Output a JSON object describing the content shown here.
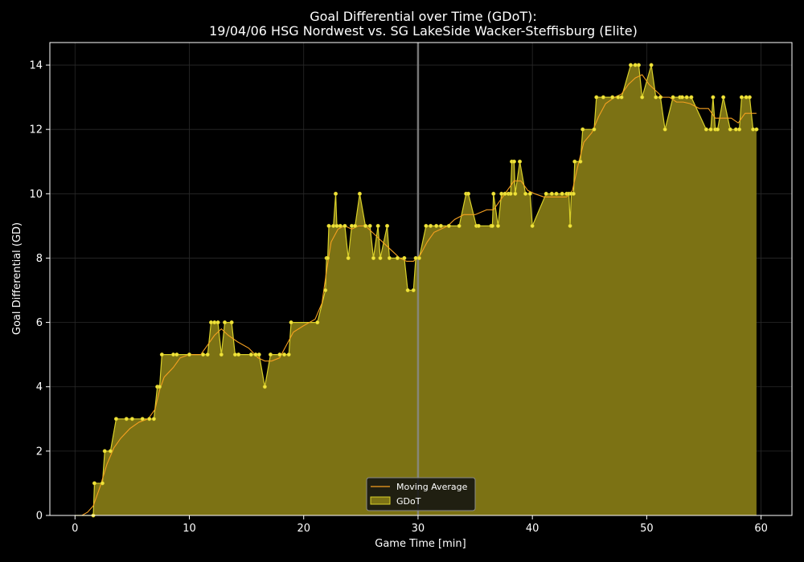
{
  "chart_data": {
    "type": "area",
    "title_line1": "Goal Differential over Time (GDoT):",
    "title_line2": "19/04/06 HSG Nordwest  vs.  SG LakeSide Wacker-Steffisburg (Elite)",
    "xlabel": "Game Time [min]",
    "ylabel": "Goal Differential (GD)",
    "xlim": [
      -2.2,
      62.7
    ],
    "ylim": [
      0,
      14.7
    ],
    "xticks": [
      0,
      10,
      20,
      30,
      40,
      50,
      60
    ],
    "yticks": [
      0,
      2,
      4,
      6,
      8,
      10,
      12,
      14
    ],
    "grid": true,
    "halftime_line_x": 30,
    "legend_position": "bottom-center",
    "legend": [
      "Moving Average",
      "GDoT"
    ],
    "series": [
      {
        "name": "GDoT",
        "style": "filled-area",
        "points": [
          [
            0,
            0
          ],
          [
            1.6,
            0
          ],
          [
            1.7,
            1
          ],
          [
            2.4,
            1
          ],
          [
            2.6,
            2
          ],
          [
            3.1,
            2
          ],
          [
            3.6,
            3
          ],
          [
            4.5,
            3
          ],
          [
            5.0,
            3
          ],
          [
            5.9,
            3
          ],
          [
            6.5,
            3
          ],
          [
            6.9,
            3
          ],
          [
            7.2,
            4
          ],
          [
            7.4,
            4
          ],
          [
            7.6,
            5
          ],
          [
            8.6,
            5
          ],
          [
            8.9,
            5
          ],
          [
            10.0,
            5
          ],
          [
            11.2,
            5
          ],
          [
            11.6,
            5
          ],
          [
            11.9,
            6
          ],
          [
            12.2,
            6
          ],
          [
            12.5,
            6
          ],
          [
            12.8,
            5
          ],
          [
            13.1,
            6
          ],
          [
            13.7,
            6
          ],
          [
            14.0,
            5
          ],
          [
            14.3,
            5
          ],
          [
            15.4,
            5
          ],
          [
            15.8,
            5
          ],
          [
            16.1,
            5
          ],
          [
            16.6,
            4
          ],
          [
            17.1,
            5
          ],
          [
            17.9,
            5
          ],
          [
            18.3,
            5
          ],
          [
            18.7,
            5
          ],
          [
            18.9,
            6
          ],
          [
            21.2,
            6
          ],
          [
            21.9,
            7
          ],
          [
            22.0,
            8
          ],
          [
            22.1,
            8
          ],
          [
            22.2,
            9
          ],
          [
            22.6,
            9
          ],
          [
            22.8,
            10
          ],
          [
            22.9,
            9
          ],
          [
            23.2,
            9
          ],
          [
            23.6,
            9
          ],
          [
            23.9,
            8
          ],
          [
            24.2,
            9
          ],
          [
            24.5,
            9
          ],
          [
            24.9,
            10
          ],
          [
            25.4,
            9
          ],
          [
            25.8,
            9
          ],
          [
            26.1,
            8
          ],
          [
            26.5,
            9
          ],
          [
            26.7,
            8
          ],
          [
            27.3,
            9
          ],
          [
            27.5,
            8
          ],
          [
            28.2,
            8
          ],
          [
            28.8,
            8
          ],
          [
            29.1,
            7
          ],
          [
            29.6,
            7
          ],
          [
            29.8,
            8
          ],
          [
            30.1,
            8
          ],
          [
            30.7,
            9
          ],
          [
            31.1,
            9
          ],
          [
            31.6,
            9
          ],
          [
            32.0,
            9
          ],
          [
            32.7,
            9
          ],
          [
            33.6,
            9
          ],
          [
            34.2,
            10
          ],
          [
            34.4,
            10
          ],
          [
            35.1,
            9
          ],
          [
            35.3,
            9
          ],
          [
            36.4,
            9
          ],
          [
            36.5,
            9
          ],
          [
            36.6,
            10
          ],
          [
            37.0,
            9
          ],
          [
            37.3,
            10
          ],
          [
            37.6,
            10
          ],
          [
            37.9,
            10
          ],
          [
            38.1,
            10
          ],
          [
            38.2,
            11
          ],
          [
            38.4,
            11
          ],
          [
            38.5,
            10
          ],
          [
            38.9,
            11
          ],
          [
            39.4,
            10
          ],
          [
            39.8,
            10
          ],
          [
            40.0,
            9
          ],
          [
            41.2,
            10
          ],
          [
            41.7,
            10
          ],
          [
            42.1,
            10
          ],
          [
            42.6,
            10
          ],
          [
            43.0,
            10
          ],
          [
            43.2,
            10
          ],
          [
            43.3,
            9
          ],
          [
            43.4,
            10
          ],
          [
            43.6,
            10
          ],
          [
            43.7,
            11
          ],
          [
            44.2,
            11
          ],
          [
            44.4,
            12
          ],
          [
            45.4,
            12
          ],
          [
            45.6,
            13
          ],
          [
            46.2,
            13
          ],
          [
            47.0,
            13
          ],
          [
            47.5,
            13
          ],
          [
            47.8,
            13
          ],
          [
            48.6,
            14
          ],
          [
            49.0,
            14
          ],
          [
            49.3,
            14
          ],
          [
            49.6,
            13
          ],
          [
            50.4,
            14
          ],
          [
            50.8,
            13
          ],
          [
            51.2,
            13
          ],
          [
            51.6,
            12
          ],
          [
            52.3,
            13
          ],
          [
            52.9,
            13
          ],
          [
            53.1,
            13
          ],
          [
            53.5,
            13
          ],
          [
            53.9,
            13
          ],
          [
            55.2,
            12
          ],
          [
            55.6,
            12
          ],
          [
            55.8,
            13
          ],
          [
            56.0,
            12
          ],
          [
            56.2,
            12
          ],
          [
            56.7,
            13
          ],
          [
            57.3,
            12
          ],
          [
            57.8,
            12
          ],
          [
            58.1,
            12
          ],
          [
            58.3,
            13
          ],
          [
            58.7,
            13
          ],
          [
            59.0,
            13
          ],
          [
            59.3,
            12
          ],
          [
            59.6,
            12
          ]
        ]
      },
      {
        "name": "Moving Average",
        "style": "line",
        "points": [
          [
            0.6,
            0
          ],
          [
            1.1,
            0.1
          ],
          [
            1.6,
            0.3
          ],
          [
            2.2,
            0.9
          ],
          [
            2.8,
            1.6
          ],
          [
            3.4,
            2.1
          ],
          [
            4.0,
            2.4
          ],
          [
            4.8,
            2.7
          ],
          [
            5.6,
            2.9
          ],
          [
            6.4,
            3.0
          ],
          [
            7.0,
            3.3
          ],
          [
            7.4,
            3.9
          ],
          [
            7.8,
            4.3
          ],
          [
            8.6,
            4.6
          ],
          [
            9.2,
            4.9
          ],
          [
            10.0,
            5.0
          ],
          [
            11.0,
            5.0
          ],
          [
            11.6,
            5.3
          ],
          [
            12.2,
            5.6
          ],
          [
            12.8,
            5.8
          ],
          [
            13.4,
            5.6
          ],
          [
            14.2,
            5.4
          ],
          [
            15.2,
            5.2
          ],
          [
            16.0,
            4.9
          ],
          [
            16.6,
            4.8
          ],
          [
            17.2,
            4.8
          ],
          [
            17.9,
            4.9
          ],
          [
            18.5,
            5.3
          ],
          [
            19.1,
            5.7
          ],
          [
            20.0,
            5.9
          ],
          [
            21.0,
            6.1
          ],
          [
            21.6,
            6.6
          ],
          [
            22.0,
            7.6
          ],
          [
            22.4,
            8.5
          ],
          [
            23.0,
            8.9
          ],
          [
            23.6,
            9.0
          ],
          [
            24.2,
            8.9
          ],
          [
            24.8,
            9.0
          ],
          [
            25.4,
            9.0
          ],
          [
            26.0,
            8.8
          ],
          [
            26.6,
            8.6
          ],
          [
            27.2,
            8.4
          ],
          [
            27.8,
            8.2
          ],
          [
            28.4,
            8.0
          ],
          [
            29.0,
            7.9
          ],
          [
            29.6,
            7.9
          ],
          [
            30.2,
            8.1
          ],
          [
            30.8,
            8.5
          ],
          [
            31.4,
            8.8
          ],
          [
            32.0,
            8.9
          ],
          [
            32.6,
            9.0
          ],
          [
            33.2,
            9.2
          ],
          [
            34.0,
            9.35
          ],
          [
            35.0,
            9.35
          ],
          [
            36.0,
            9.5
          ],
          [
            36.6,
            9.5
          ],
          [
            37.2,
            9.8
          ],
          [
            37.8,
            10.1
          ],
          [
            38.4,
            10.4
          ],
          [
            39.0,
            10.4
          ],
          [
            39.6,
            10.1
          ],
          [
            40.2,
            10.0
          ],
          [
            41.0,
            9.9
          ],
          [
            42.0,
            9.9
          ],
          [
            43.0,
            9.9
          ],
          [
            43.5,
            10.1
          ],
          [
            44.0,
            10.9
          ],
          [
            44.5,
            11.6
          ],
          [
            45.2,
            11.9
          ],
          [
            45.8,
            12.4
          ],
          [
            46.4,
            12.8
          ],
          [
            47.2,
            13.0
          ],
          [
            47.8,
            13.1
          ],
          [
            48.4,
            13.4
          ],
          [
            49.0,
            13.6
          ],
          [
            49.6,
            13.7
          ],
          [
            50.2,
            13.4
          ],
          [
            50.8,
            13.2
          ],
          [
            51.4,
            13.0
          ],
          [
            52.0,
            13.0
          ],
          [
            52.6,
            12.85
          ],
          [
            53.2,
            12.85
          ],
          [
            53.8,
            12.8
          ],
          [
            54.6,
            12.65
          ],
          [
            55.4,
            12.65
          ],
          [
            56.0,
            12.35
          ],
          [
            56.6,
            12.35
          ],
          [
            57.4,
            12.35
          ],
          [
            58.0,
            12.2
          ],
          [
            58.6,
            12.5
          ],
          [
            59.2,
            12.5
          ],
          [
            59.6,
            12.5
          ]
        ]
      }
    ],
    "colors": {
      "background": "#000000",
      "area_fill": "#7c7214",
      "area_edge": "#d9d02a",
      "markers": "#f0e33a",
      "moving_average": "#f5a020",
      "grid": "#2a2a2a",
      "halftime_line": "#8a8a8a",
      "axes": "#ffffff"
    }
  }
}
